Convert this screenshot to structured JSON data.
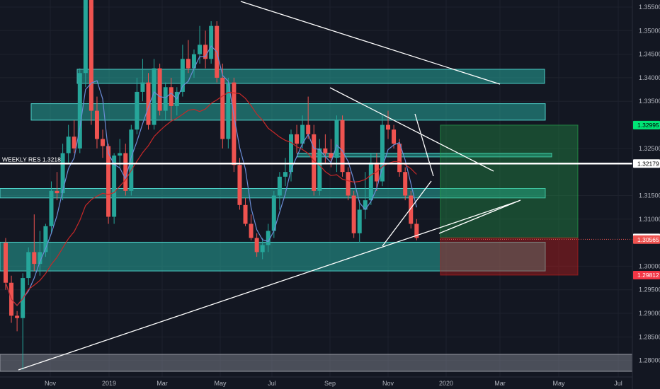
{
  "chart_data": {
    "type": "candlestick",
    "symbol_note": "weekly price chart",
    "price_axis": {
      "ticks": [
        "1.35500",
        "1.35000",
        "1.34500",
        "1.34000",
        "1.33500",
        "1.32500",
        "1.31500",
        "1.31000",
        "1.30000",
        "1.29500",
        "1.29000",
        "1.28500",
        "1.28000"
      ],
      "range": [
        1.2765,
        1.3565
      ]
    },
    "time_axis": {
      "ticks": [
        "Nov",
        "2019",
        "Mar",
        "May",
        "Jul",
        "Sep",
        "Nov",
        "2020",
        "Mar",
        "May",
        "Jul"
      ]
    },
    "price_tags": [
      {
        "label": "1.32995",
        "value": 1.32995,
        "color": "#00e676",
        "text_color": "#000000"
      },
      {
        "label": "1.32179",
        "value": 1.32179,
        "color": "#ffffff",
        "text_color": "#000000"
      },
      {
        "label": "1.30602",
        "value": 1.30602,
        "color": "#ffffff",
        "text_color": "#000000"
      },
      {
        "label": "1.30565",
        "value": 1.30565,
        "color": "#ef5350",
        "text_color": "#ffffff"
      },
      {
        "label": "1.29812",
        "value": 1.29812,
        "color": "#f23645",
        "text_color": "#ffffff"
      }
    ],
    "horizontal_line": {
      "label": "WEEKLY RES  1.3218",
      "value": 1.32179
    },
    "zones": [
      {
        "top": 1.3418,
        "bottom": 1.3388
      },
      {
        "top": 1.3345,
        "bottom": 1.331
      },
      {
        "top": 1.324,
        "bottom": 1.3232
      },
      {
        "top": 1.3165,
        "bottom": 1.3145
      },
      {
        "top": 1.3051,
        "bottom": 1.299
      }
    ],
    "position": {
      "target": 1.32995,
      "entry": 1.30602,
      "stop": 1.29812
    },
    "candles": [
      [
        1.305,
        1.306,
        1.295,
        1.2965
      ],
      [
        1.2965,
        1.298,
        1.288,
        1.2895
      ],
      [
        1.2895,
        1.2905,
        1.2862,
        1.289
      ],
      [
        1.289,
        1.2985,
        1.278,
        1.2975
      ],
      [
        1.2975,
        1.304,
        1.296,
        1.303
      ],
      [
        1.303,
        1.311,
        1.299,
        1.3005
      ],
      [
        1.3005,
        1.3075,
        1.298,
        1.303
      ],
      [
        1.303,
        1.309,
        1.302,
        1.3085
      ],
      [
        1.3085,
        1.318,
        1.307,
        1.316
      ],
      [
        1.316,
        1.32,
        1.314,
        1.3155
      ],
      [
        1.3155,
        1.326,
        1.314,
        1.324
      ],
      [
        1.324,
        1.33,
        1.322,
        1.3275
      ],
      [
        1.3275,
        1.331,
        1.324,
        1.325
      ],
      [
        1.325,
        1.342,
        1.324,
        1.341
      ],
      [
        1.341,
        1.3565,
        1.338,
        1.3565
      ],
      [
        1.3565,
        1.358,
        1.33,
        1.333
      ],
      [
        1.333,
        1.336,
        1.325,
        1.327
      ],
      [
        1.327,
        1.329,
        1.323,
        1.3255
      ],
      [
        1.3255,
        1.326,
        1.309,
        1.3105
      ],
      [
        1.3105,
        1.324,
        1.309,
        1.3235
      ],
      [
        1.3235,
        1.327,
        1.321,
        1.324
      ],
      [
        1.324,
        1.326,
        1.315,
        1.316
      ],
      [
        1.316,
        1.33,
        1.315,
        1.329
      ],
      [
        1.329,
        1.34,
        1.328,
        1.337
      ],
      [
        1.337,
        1.344,
        1.335,
        1.339
      ],
      [
        1.339,
        1.341,
        1.329,
        1.33
      ],
      [
        1.33,
        1.344,
        1.329,
        1.342
      ],
      [
        1.342,
        1.343,
        1.332,
        1.333
      ],
      [
        1.333,
        1.339,
        1.331,
        1.338
      ],
      [
        1.338,
        1.34,
        1.331,
        1.334
      ],
      [
        1.334,
        1.338,
        1.332,
        1.337
      ],
      [
        1.337,
        1.347,
        1.336,
        1.344
      ],
      [
        1.344,
        1.348,
        1.341,
        1.342
      ],
      [
        1.342,
        1.346,
        1.34,
        1.345
      ],
      [
        1.345,
        1.351,
        1.343,
        1.347
      ],
      [
        1.347,
        1.35,
        1.342,
        1.344
      ],
      [
        1.344,
        1.352,
        1.343,
        1.351
      ],
      [
        1.351,
        1.352,
        1.339,
        1.34
      ],
      [
        1.34,
        1.343,
        1.325,
        1.327
      ],
      [
        1.327,
        1.34,
        1.325,
        1.339
      ],
      [
        1.339,
        1.34,
        1.32,
        1.3215
      ],
      [
        1.3215,
        1.323,
        1.312,
        1.313
      ],
      [
        1.313,
        1.3145,
        1.3085,
        1.309
      ],
      [
        1.309,
        1.311,
        1.3055,
        1.306
      ],
      [
        1.306,
        1.307,
        1.302,
        1.303
      ],
      [
        1.303,
        1.306,
        1.3015,
        1.3045
      ],
      [
        1.3045,
        1.309,
        1.303,
        1.3075
      ],
      [
        1.3075,
        1.316,
        1.306,
        1.315
      ],
      [
        1.315,
        1.32,
        1.312,
        1.319
      ],
      [
        1.319,
        1.323,
        1.317,
        1.32
      ],
      [
        1.32,
        1.329,
        1.318,
        1.328
      ],
      [
        1.328,
        1.33,
        1.324,
        1.326
      ],
      [
        1.326,
        1.332,
        1.325,
        1.33
      ],
      [
        1.33,
        1.336,
        1.327,
        1.328
      ],
      [
        1.328,
        1.33,
        1.315,
        1.316
      ],
      [
        1.316,
        1.327,
        1.315,
        1.325
      ],
      [
        1.325,
        1.328,
        1.322,
        1.324
      ],
      [
        1.324,
        1.327,
        1.321,
        1.323
      ],
      [
        1.323,
        1.332,
        1.32,
        1.331
      ],
      [
        1.331,
        1.332,
        1.319,
        1.32
      ],
      [
        1.32,
        1.321,
        1.314,
        1.315
      ],
      [
        1.315,
        1.316,
        1.306,
        1.307
      ],
      [
        1.307,
        1.314,
        1.305,
        1.312
      ],
      [
        1.312,
        1.32,
        1.31,
        1.314
      ],
      [
        1.314,
        1.324,
        1.313,
        1.322
      ],
      [
        1.322,
        1.324,
        1.316,
        1.318
      ],
      [
        1.318,
        1.332,
        1.317,
        1.33
      ],
      [
        1.33,
        1.333,
        1.327,
        1.329
      ],
      [
        1.329,
        1.33,
        1.325,
        1.326
      ],
      [
        1.326,
        1.327,
        1.319,
        1.32
      ],
      [
        1.32,
        1.321,
        1.314,
        1.315
      ],
      [
        1.315,
        1.316,
        1.308,
        1.309
      ],
      [
        1.309,
        1.31,
        1.3055,
        1.306
      ]
    ]
  }
}
